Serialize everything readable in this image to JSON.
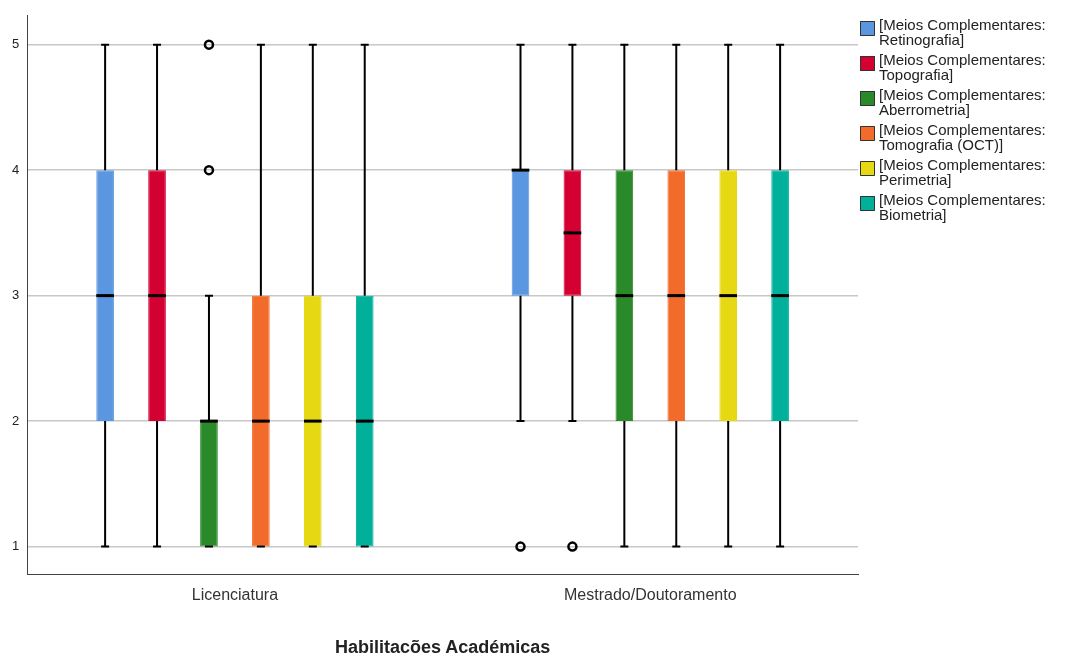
{
  "chart_data": {
    "type": "box",
    "xlabel": "Habilitacões Académicas",
    "categories": [
      "Licenciatura",
      "Mestrado/Doutoramento"
    ],
    "ylim": [
      0.78,
      5.23
    ],
    "yticks": [
      1,
      2,
      3,
      4,
      5
    ],
    "grid": "y",
    "legend": "top right",
    "series": [
      {
        "name": "[Meios Complementares: Retinografia]",
        "color": "#5b96e0",
        "boxes": [
          {
            "low": 1,
            "q1": 2,
            "median": 3,
            "q3": 4,
            "high": 5
          },
          {
            "low": 2,
            "q1": 3,
            "median": 4,
            "q3": 4,
            "high": 5,
            "outliers": [
              1
            ]
          }
        ]
      },
      {
        "name": "[Meios Complementares: Topografia]",
        "color": "#d50032",
        "boxes": [
          {
            "low": 1,
            "q1": 2,
            "median": 3,
            "q3": 4,
            "high": 5
          },
          {
            "low": 2,
            "q1": 3,
            "median": 3.5,
            "q3": 4,
            "high": 5,
            "outliers": [
              1
            ]
          }
        ]
      },
      {
        "name": "[Meios Complementares: Aberrometria]",
        "color": "#2a8a2a",
        "boxes": [
          {
            "low": 1,
            "q1": 1,
            "median": 2,
            "q3": 2,
            "high": 3,
            "outliers": [
              4,
              5
            ]
          },
          {
            "low": 1,
            "q1": 2,
            "median": 3,
            "q3": 4,
            "high": 5
          }
        ]
      },
      {
        "name": "[Meios Complementares: Tomografia (OCT)]",
        "color": "#f26b2a",
        "boxes": [
          {
            "low": 1,
            "q1": 1,
            "median": 2,
            "q3": 3,
            "high": 5
          },
          {
            "low": 1,
            "q1": 2,
            "median": 3,
            "q3": 4,
            "high": 5
          }
        ]
      },
      {
        "name": "[Meios Complementares: Perimetria]",
        "color": "#e6d813",
        "boxes": [
          {
            "low": 1,
            "q1": 1,
            "median": 2,
            "q3": 3,
            "high": 5
          },
          {
            "low": 1,
            "q1": 2,
            "median": 3,
            "q3": 4,
            "high": 5
          }
        ]
      },
      {
        "name": "[Meios Complementares: Biometria]",
        "color": "#00b09b",
        "boxes": [
          {
            "low": 1,
            "q1": 1,
            "median": 2,
            "q3": 3,
            "high": 5
          },
          {
            "low": 1,
            "q1": 2,
            "median": 3,
            "q3": 4,
            "high": 5
          }
        ]
      }
    ]
  }
}
